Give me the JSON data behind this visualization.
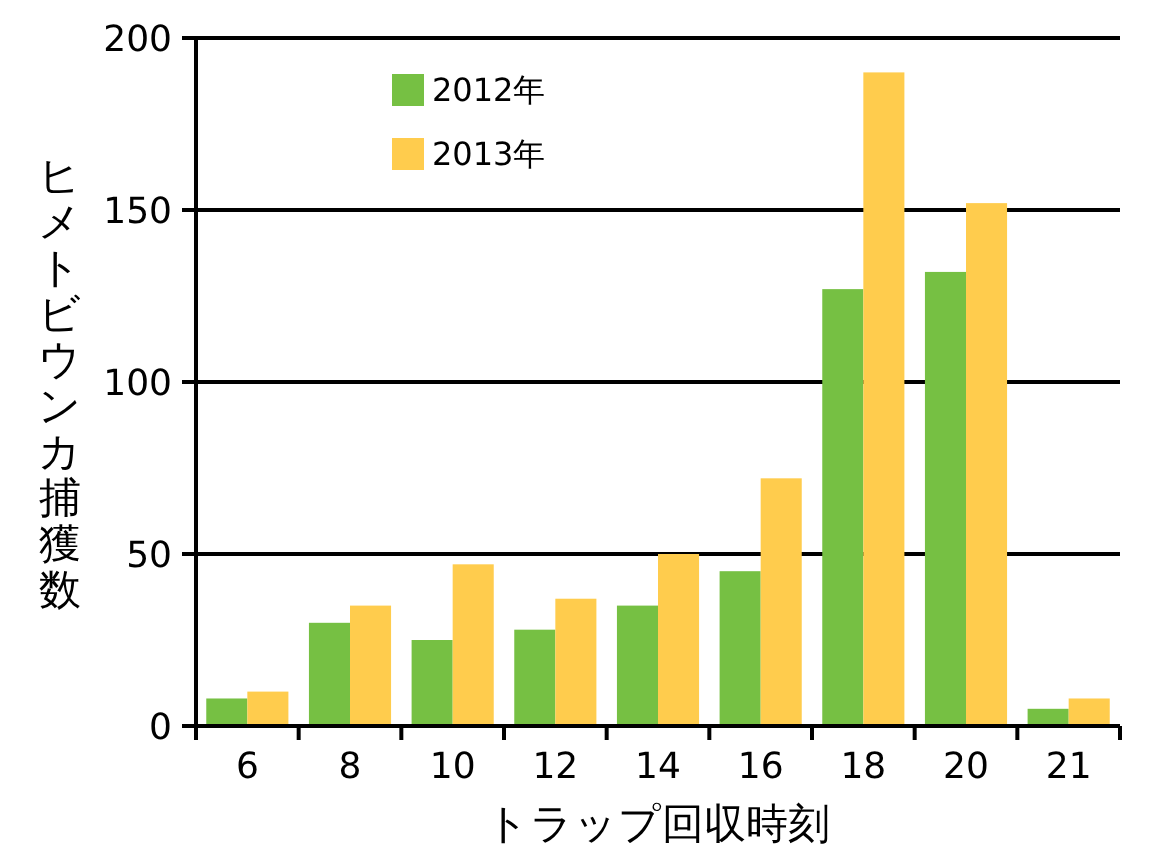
{
  "chart_data": {
    "type": "bar",
    "xlabel": "トラップ回収時刻",
    "ylabel": "ヒメトビウンカ捕獲数",
    "categories": [
      "6",
      "8",
      "10",
      "12",
      "14",
      "16",
      "18",
      "20",
      "21"
    ],
    "series": [
      {
        "name": "2012年",
        "color": "#76c043",
        "values": [
          8,
          30,
          25,
          28,
          35,
          45,
          127,
          132,
          5
        ]
      },
      {
        "name": "2013年",
        "color": "#ffcc4d",
        "values": [
          10,
          35,
          47,
          37,
          50,
          72,
          190,
          152,
          8
        ]
      }
    ],
    "ylim": [
      0,
      200
    ],
    "yticks": [
      0,
      50,
      100,
      150,
      200
    ],
    "grid": "y",
    "legend": "top left"
  }
}
